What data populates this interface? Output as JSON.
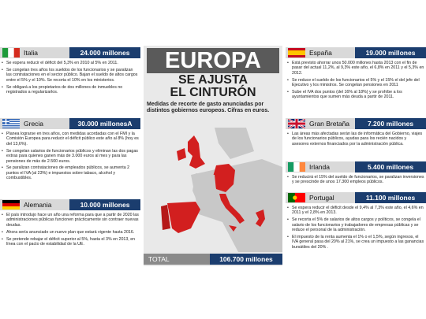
{
  "header": {
    "title": "EUROPA",
    "subtitle_1": "SE AJUSTA",
    "subtitle_2": "EL CINTURÓN",
    "description": "Medidas de recorte de gasto anunciadas por distintos gobiernos europeos. Cifras en euros."
  },
  "total": {
    "label": "TOTAL",
    "amount": "106.700 millones"
  },
  "countries": [
    {
      "name": "Italia",
      "amount": "24.000 millones",
      "items": [
        "Se espera reducir el déficit del 5,3% en 2010 al 5% en 2011.",
        "Se congelan tres años los sueldos de los funcionarios y se paralizan las contrataciones en el sector público. Bajan el sueldo de altos cargos entre el 5% y el 10%. Se recorta el 10% en los ministerios.",
        "Se obligará a los propietarios de dos millones de inmuebles no registrados a regularizarlos."
      ]
    },
    {
      "name": "Grecia",
      "amount": "30.000 millonesA",
      "items": [
        "Planea lograrse en tres años, con medidas acordadas con el FMI y la Comisión Europea para reducir el déficit público este año al 8% (hoy es del 13,6%).",
        "Se congelan salarios de funcionarios públicos y eliminan las dos pagas extras para quienes ganen más de 3.000 euros al mes y para las pensiones de más de 2.500 euros.",
        "Se paralizan contrataciones de empleados públicos, se aumenta 2 puntos el IVA (al 23%) e impuestos sobre tabaco, alcohol y combustibles."
      ]
    },
    {
      "name": "Alemania",
      "amount": "10.000 millones",
      "items": [
        "El país introdujo hace un año una reforma para que a partir de 2020 las administraciones públicas funcionen prácticamente sin contraer nuevas deudas.",
        "Ahora sería anunciado un nuevo plan que estará vigente hasta 2016.",
        "Se pretende rebajar el déficit superior al 5%, hasta el 3% en 2013, en línea con el pacto de estabilidad de la UE."
      ]
    },
    {
      "name": "España",
      "amount": "19.000 millones",
      "items": [
        "Está previsto ahorrar unos 50.000 millones hasta 2013 con el fin de pasar del actual 11,2%, al 9,3% este año, el 6,8% en 2011 y el 5,3% en 2012.",
        "Se reduce el sueldo de los funcionarios el 5% y el 15% el del jefe del Ejecutivo y los ministros. Se congelan pensiones en 2011",
        "Sube el IVA dos puntos (del 16% al 18%) y se prohíbe a los ayuntamientos que sumen más deuda a partir de 2011."
      ]
    },
    {
      "name": "Gran Bretaña",
      "amount": "7.200 millones",
      "items": [
        "Las áreas más afectadas serán las de informática del Gobierno, viajes de los funcionarios públicos, ayudas para los recién nacidos y asesores externos financiados por la administración pública."
      ]
    },
    {
      "name": "Irlanda",
      "amount": "5.400 millones",
      "items": [
        "Se reducirá el 15% del sueldo de funcionarios, se paralizan inversiones y se prescinde de unos 17.300 empleos públicos."
      ]
    },
    {
      "name": "Portugal",
      "amount": "11.100 millones",
      "items": [
        "Se espera reducir el déficit desde el 9,4% al 7,3% este año, el 4,6% en 2011 y el 2,8% en 2013.",
        "Se recorta el 5% de salarios de altos cargos y políticos, se congela el salario de los funcionarios y trabajadores de empresas públicas y se reduce el personal de la administración.",
        "El impuesto de la renta aumenta el 1% o el 1,5%, según ingresos, el IVA general pasa del 20% al 21%, se crea un impuesto a las ganancias bursátiles del 20% ."
      ]
    }
  ]
}
